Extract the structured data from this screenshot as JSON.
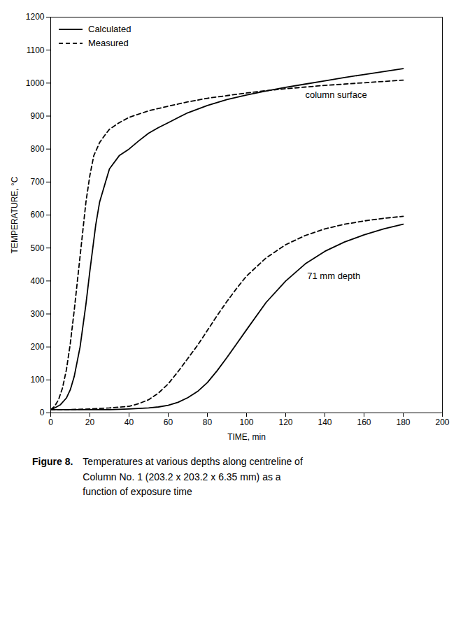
{
  "chart_data": {
    "type": "line",
    "xlabel": "TIME, min",
    "ylabel": "TEMPERATURE, °C",
    "xlim": [
      0,
      200
    ],
    "ylim": [
      0,
      1200
    ],
    "xticks": [
      0,
      20,
      40,
      60,
      80,
      100,
      120,
      140,
      160,
      180,
      200
    ],
    "yticks": [
      0,
      100,
      200,
      300,
      400,
      500,
      600,
      700,
      800,
      900,
      1000,
      1100,
      1200
    ],
    "grid": false,
    "legend": "upper left",
    "series": [
      {
        "name": "Calculated",
        "color": "#000000",
        "line_style": "solid",
        "x": [
          0,
          2,
          5,
          8,
          10,
          12,
          15,
          18,
          20,
          23,
          25,
          28,
          30,
          35,
          40,
          45,
          50,
          55,
          60,
          70,
          80,
          90,
          100,
          110,
          120,
          130,
          140,
          150,
          160,
          170,
          180
        ],
        "values": [
          10,
          15,
          25,
          45,
          70,
          110,
          200,
          330,
          430,
          570,
          640,
          700,
          740,
          780,
          800,
          825,
          848,
          865,
          880,
          910,
          932,
          950,
          964,
          976,
          987,
          997,
          1007,
          1017,
          1026,
          1035,
          1044
        ]
      },
      {
        "name": "Measured",
        "color": "#000000",
        "line_style": "dashed",
        "x": [
          0,
          2,
          4,
          6,
          8,
          10,
          12,
          14,
          16,
          18,
          20,
          22,
          25,
          28,
          30,
          35,
          40,
          50,
          60,
          70,
          80,
          90,
          100,
          110,
          120,
          130,
          140,
          150,
          160,
          170,
          180
        ],
        "values": [
          10,
          20,
          40,
          75,
          130,
          210,
          310,
          420,
          530,
          640,
          720,
          780,
          820,
          845,
          860,
          880,
          896,
          916,
          930,
          943,
          954,
          962,
          970,
          977,
          983,
          988,
          993,
          997,
          1001,
          1005,
          1009
        ]
      },
      {
        "name": "Calculated",
        "color": "#000000",
        "line_style": "solid",
        "x": [
          0,
          10,
          20,
          30,
          40,
          50,
          55,
          60,
          65,
          70,
          75,
          80,
          85,
          90,
          95,
          100,
          110,
          120,
          130,
          140,
          150,
          160,
          170,
          180
        ],
        "values": [
          10,
          10,
          10,
          10,
          12,
          15,
          18,
          23,
          32,
          46,
          65,
          92,
          128,
          168,
          210,
          252,
          335,
          400,
          452,
          490,
          518,
          540,
          558,
          572
        ]
      },
      {
        "name": "Measured",
        "color": "#000000",
        "line_style": "dashed",
        "x": [
          0,
          10,
          20,
          30,
          40,
          45,
          50,
          55,
          60,
          65,
          70,
          75,
          80,
          85,
          90,
          95,
          100,
          110,
          120,
          130,
          140,
          150,
          160,
          170,
          180
        ],
        "values": [
          10,
          10,
          12,
          15,
          20,
          28,
          40,
          60,
          88,
          125,
          165,
          205,
          250,
          295,
          338,
          378,
          415,
          470,
          510,
          538,
          558,
          572,
          582,
          590,
          596
        ]
      }
    ],
    "annotations": [
      {
        "text": "column surface",
        "x": 130,
        "y": 965
      },
      {
        "text": "71 mm depth",
        "x": 131,
        "y": 415
      }
    ],
    "caption_label": "Figure 8.",
    "caption": "Temperatures at various depths along centreline of\nColumn No. 1 (203.2 x 203.2 x 6.35 mm) as a\nfunction of exposure time"
  }
}
